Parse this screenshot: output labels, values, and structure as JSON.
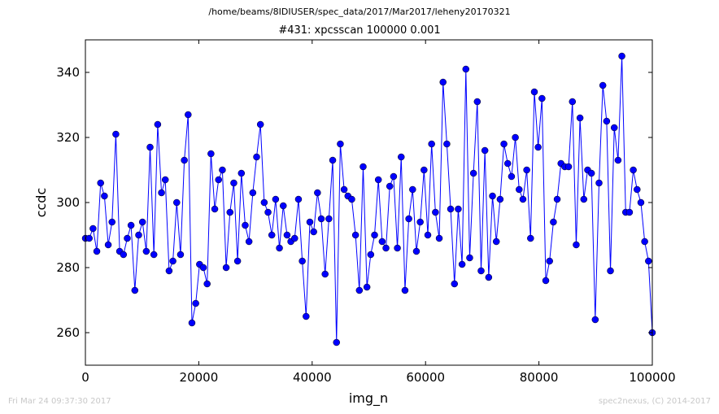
{
  "header": {
    "path": "/home/beams/8IDIUSER/spec_data/2017/Mar2017/leheny20170321",
    "scan_title": "#431: xpcsscan 100000 0.001"
  },
  "footer": {
    "timestamp": "Fri Mar 24 09:37:30 2017",
    "credit": "spec2nexus, (C) 2014-2017"
  },
  "chart_data": {
    "type": "line",
    "title": "#431: xpcsscan 100000 0.001",
    "xlabel": "img_n",
    "ylabel": "ccdc",
    "xlim": [
      0,
      100000
    ],
    "ylim": [
      250,
      350
    ],
    "xticks": [
      0,
      20000,
      40000,
      60000,
      80000,
      100000
    ],
    "yticks": [
      260,
      280,
      300,
      320,
      340
    ],
    "grid": false,
    "color": "#0000ff",
    "marker": "circle",
    "series": [
      {
        "values": [
          289,
          289,
          292,
          285,
          306,
          302,
          287,
          294,
          321,
          285,
          284,
          289,
          293,
          273,
          290,
          294,
          285,
          317,
          284,
          324,
          303,
          307,
          279,
          282,
          300,
          284,
          313,
          327,
          263,
          269,
          281,
          280,
          275,
          315,
          298,
          307,
          310,
          280,
          297,
          306,
          282,
          309,
          293,
          288,
          303,
          314,
          324,
          300,
          297,
          290,
          301,
          286,
          299,
          290,
          288,
          289,
          301,
          282,
          265,
          294,
          291,
          303,
          295,
          278,
          295,
          313,
          257,
          318,
          304,
          302,
          301,
          290,
          273,
          311,
          274,
          284,
          290,
          307,
          288,
          286,
          305,
          308,
          286,
          314,
          273,
          295,
          304,
          285,
          294,
          310,
          290,
          318,
          297,
          289,
          337,
          318,
          298,
          275,
          298,
          281,
          341,
          283,
          309,
          331,
          279,
          316,
          277,
          302,
          288,
          301,
          318,
          312,
          308,
          320,
          304,
          301,
          310,
          289,
          334,
          317,
          332,
          276,
          282,
          294,
          301,
          312,
          311,
          311,
          331,
          287,
          326,
          301,
          310,
          309,
          264,
          306,
          336,
          325,
          279,
          323,
          313,
          345,
          297,
          297,
          310,
          304,
          300,
          288,
          282,
          260
        ]
      }
    ]
  }
}
